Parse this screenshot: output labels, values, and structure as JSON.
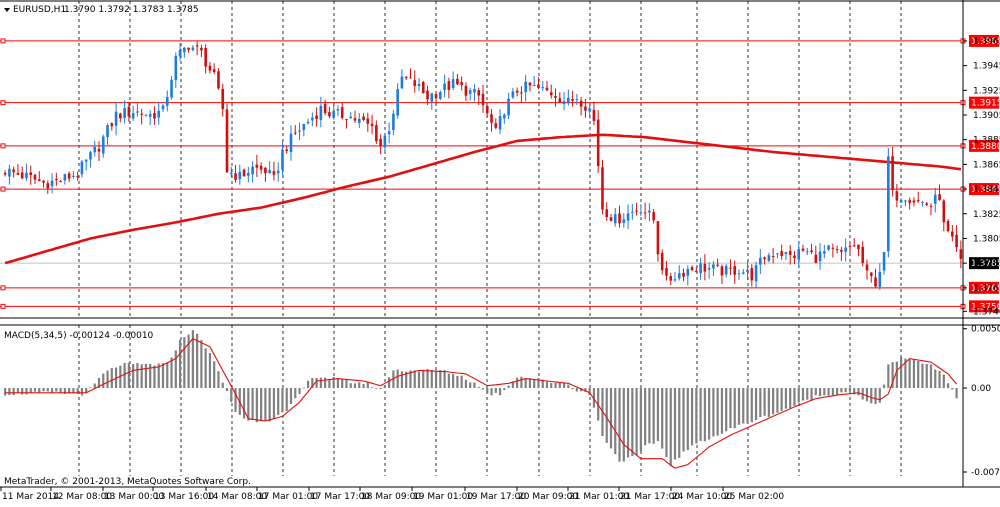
{
  "header": {
    "symbol_label": "EURUSD,H1",
    "ohlc": "1.3790 1.3792 1.3783 1.3785"
  },
  "macd": {
    "label": "MACD(5,34,5) -0.00124 -0.00010"
  },
  "footer": {
    "copyright": "MetaTrader, © 2001-2013, MetaQuotes Software Corp."
  },
  "colors": {
    "background": "#ffffff",
    "axis": "#000000",
    "grid": "#000000",
    "bull": "#1e7be0",
    "bear": "#d01010",
    "ma": "#e01010",
    "level": "#ff0000",
    "macd_hist": "#808080",
    "macd_signal": "#e01010",
    "current_price_line": "#c0c0c0"
  },
  "chart_data": [
    {
      "type": "candlestick",
      "title": "EURUSD,H1",
      "x_tick_labels": [
        "11 Mar 2014",
        "12 Mar 08:00",
        "13 Mar 00:00",
        "13 Mar 16:00",
        "14 Mar 08:00",
        "17 Mar 01:00",
        "17 Mar 17:00",
        "18 Mar 09:00",
        "19 Mar 01:00",
        "19 Mar 17:00",
        "20 Mar 09:00",
        "21 Mar 01:00",
        "21 Mar 17:00",
        "24 Mar 10:00",
        "25 Mar 02:00"
      ],
      "y_tick_labels": [
        "1.3965",
        "1.3945",
        "1.3925",
        "1.3905",
        "1.3885",
        "1.3865",
        "1.3845",
        "1.3825",
        "1.3805",
        "1.3785",
        "1.3765",
        "1.3746"
      ],
      "y_range": [
        1.3743,
        1.3986
      ],
      "grid": true,
      "current_price": 1.3785,
      "current_price_label": "1.3785",
      "horizontal_levels": [
        {
          "label": "1.3965",
          "value": 1.3965
        },
        {
          "label": "1.3915",
          "value": 1.3915
        },
        {
          "label": "1.3880",
          "value": 1.388
        },
        {
          "label": "1.3845",
          "value": 1.3845
        },
        {
          "label": "1.3765",
          "value": 1.3765
        },
        {
          "label": "1.3750",
          "value": 1.375
        }
      ],
      "close_path": [
        [
          0,
          1.386
        ],
        [
          5,
          1.3855
        ],
        [
          9,
          1.385
        ],
        [
          13,
          1.3852
        ],
        [
          17,
          1.3858
        ],
        [
          22,
          1.388
        ],
        [
          26,
          1.3905
        ],
        [
          30,
          1.3908
        ],
        [
          34,
          1.3905
        ],
        [
          37,
          1.3908
        ],
        [
          40,
          1.395
        ],
        [
          43,
          1.3962
        ],
        [
          46,
          1.3955
        ],
        [
          49,
          1.3935
        ],
        [
          51,
          1.391
        ],
        [
          52,
          1.386
        ],
        [
          55,
          1.3855
        ],
        [
          58,
          1.3862
        ],
        [
          61,
          1.386
        ],
        [
          63,
          1.3852
        ],
        [
          65,
          1.3875
        ],
        [
          68,
          1.389
        ],
        [
          71,
          1.39
        ],
        [
          74,
          1.391
        ],
        [
          77,
          1.3905
        ],
        [
          80,
          1.3905
        ],
        [
          83,
          1.39
        ],
        [
          86,
          1.3895
        ],
        [
          88,
          1.388
        ],
        [
          90,
          1.3895
        ],
        [
          93,
          1.3935
        ],
        [
          96,
          1.393
        ],
        [
          99,
          1.392
        ],
        [
          102,
          1.3925
        ],
        [
          105,
          1.393
        ],
        [
          108,
          1.3925
        ],
        [
          111,
          1.392
        ],
        [
          113,
          1.3905
        ],
        [
          115,
          1.389
        ],
        [
          117,
          1.391
        ],
        [
          120,
          1.3925
        ],
        [
          123,
          1.3928
        ],
        [
          126,
          1.3925
        ],
        [
          129,
          1.3922
        ],
        [
          132,
          1.3915
        ],
        [
          134,
          1.392
        ],
        [
          137,
          1.391
        ],
        [
          138,
          1.39
        ],
        [
          140,
          1.383
        ],
        [
          143,
          1.382
        ],
        [
          146,
          1.3825
        ],
        [
          149,
          1.383
        ],
        [
          152,
          1.382
        ],
        [
          153,
          1.3795
        ],
        [
          155,
          1.377
        ],
        [
          157,
          1.3775
        ],
        [
          160,
          1.378
        ],
        [
          163,
          1.3782
        ],
        [
          166,
          1.378
        ],
        [
          169,
          1.3778
        ],
        [
          172,
          1.378
        ],
        [
          175,
          1.3775
        ],
        [
          178,
          1.379
        ],
        [
          181,
          1.3795
        ],
        [
          184,
          1.379
        ],
        [
          187,
          1.3795
        ],
        [
          190,
          1.379
        ],
        [
          193,
          1.3795
        ],
        [
          196,
          1.3792
        ],
        [
          199,
          1.38
        ],
        [
          200,
          1.3795
        ],
        [
          202,
          1.3775
        ],
        [
          204,
          1.377
        ],
        [
          206,
          1.379
        ],
        [
          207,
          1.387
        ],
        [
          208,
          1.384
        ],
        [
          211,
          1.384
        ],
        [
          214,
          1.3835
        ],
        [
          217,
          1.3832
        ],
        [
          219,
          1.384
        ],
        [
          220,
          1.3815
        ],
        [
          223,
          1.3795
        ],
        [
          224,
          1.3785
        ]
      ],
      "moving_average": [
        [
          0,
          1.3785
        ],
        [
          10,
          1.3795
        ],
        [
          20,
          1.3805
        ],
        [
          30,
          1.3812
        ],
        [
          40,
          1.3818
        ],
        [
          50,
          1.3825
        ],
        [
          60,
          1.383
        ],
        [
          70,
          1.3838
        ],
        [
          80,
          1.3847
        ],
        [
          90,
          1.3855
        ],
        [
          100,
          1.3865
        ],
        [
          110,
          1.3875
        ],
        [
          120,
          1.3884
        ],
        [
          130,
          1.3887
        ],
        [
          140,
          1.3889
        ],
        [
          150,
          1.3887
        ],
        [
          160,
          1.3883
        ],
        [
          170,
          1.3879
        ],
        [
          180,
          1.3875
        ],
        [
          190,
          1.3872
        ],
        [
          200,
          1.3869
        ],
        [
          210,
          1.3866
        ],
        [
          220,
          1.3863
        ],
        [
          224,
          1.3861
        ]
      ]
    },
    {
      "type": "bar",
      "title": "MACD(5,34,5) -0.00124 -0.00010",
      "y_tick_labels": [
        "0.00504",
        "0.00",
        "-0.00713"
      ],
      "y_range": [
        -0.0073,
        0.0051
      ],
      "histogram_path": [
        [
          0,
          -0.0005
        ],
        [
          10,
          -0.0004
        ],
        [
          19,
          -0.0005
        ],
        [
          23,
          0.0012
        ],
        [
          27,
          0.002
        ],
        [
          33,
          0.002
        ],
        [
          38,
          0.002
        ],
        [
          41,
          0.004
        ],
        [
          44,
          0.005
        ],
        [
          48,
          0.003
        ],
        [
          51,
          0.0005
        ],
        [
          54,
          -0.002
        ],
        [
          57,
          -0.0028
        ],
        [
          62,
          -0.0027
        ],
        [
          66,
          -0.002
        ],
        [
          69,
          -0.0005
        ],
        [
          72,
          0.001
        ],
        [
          77,
          0.0008
        ],
        [
          81,
          0.0005
        ],
        [
          85,
          0.0004
        ],
        [
          88,
          -0.0002
        ],
        [
          91,
          0.0015
        ],
        [
          96,
          0.0015
        ],
        [
          102,
          0.0015
        ],
        [
          107,
          0.001
        ],
        [
          111,
          0.0002
        ],
        [
          113,
          -0.0005
        ],
        [
          116,
          -0.0005
        ],
        [
          120,
          0.001
        ],
        [
          124,
          0.0008
        ],
        [
          128,
          0.0005
        ],
        [
          131,
          0.0005
        ],
        [
          134,
          -0.0002
        ],
        [
          137,
          -0.0005
        ],
        [
          140,
          -0.004
        ],
        [
          144,
          -0.0062
        ],
        [
          148,
          -0.0058
        ],
        [
          150,
          -0.005
        ],
        [
          153,
          -0.0045
        ],
        [
          156,
          -0.0065
        ],
        [
          159,
          -0.0055
        ],
        [
          163,
          -0.0045
        ],
        [
          167,
          -0.004
        ],
        [
          170,
          -0.0035
        ],
        [
          175,
          -0.0028
        ],
        [
          180,
          -0.0022
        ],
        [
          185,
          -0.0015
        ],
        [
          190,
          -0.0007
        ],
        [
          195,
          -0.0005
        ],
        [
          198,
          -0.0002
        ],
        [
          201,
          -0.001
        ],
        [
          204,
          -0.0015
        ],
        [
          205,
          -0.0012
        ],
        [
          207,
          0.002
        ],
        [
          210,
          0.0025
        ],
        [
          215,
          0.0022
        ],
        [
          219,
          0.0015
        ],
        [
          221,
          0.0005
        ],
        [
          223,
          -0.0008
        ],
        [
          224,
          -0.0012
        ]
      ],
      "signal_path": [
        [
          0,
          -0.0004
        ],
        [
          10,
          -0.0004
        ],
        [
          19,
          -0.0004
        ],
        [
          24,
          0.0005
        ],
        [
          30,
          0.0015
        ],
        [
          36,
          0.0018
        ],
        [
          40,
          0.0025
        ],
        [
          44,
          0.0042
        ],
        [
          48,
          0.0035
        ],
        [
          51,
          0.0015
        ],
        [
          54,
          -0.0005
        ],
        [
          57,
          -0.0026
        ],
        [
          61,
          -0.0028
        ],
        [
          65,
          -0.0024
        ],
        [
          69,
          -0.0012
        ],
        [
          73,
          0.0006
        ],
        [
          78,
          0.0008
        ],
        [
          84,
          0.0006
        ],
        [
          88,
          0.0002
        ],
        [
          92,
          0.001
        ],
        [
          97,
          0.0015
        ],
        [
          103,
          0.0014
        ],
        [
          108,
          0.0012
        ],
        [
          113,
          0.0002
        ],
        [
          118,
          0.0004
        ],
        [
          122,
          0.0008
        ],
        [
          127,
          0.0006
        ],
        [
          132,
          0.0004
        ],
        [
          137,
          -0.0004
        ],
        [
          141,
          -0.0025
        ],
        [
          145,
          -0.0048
        ],
        [
          149,
          -0.006
        ],
        [
          154,
          -0.006
        ],
        [
          157,
          -0.0068
        ],
        [
          160,
          -0.0065
        ],
        [
          165,
          -0.005
        ],
        [
          170,
          -0.004
        ],
        [
          175,
          -0.0032
        ],
        [
          180,
          -0.0024
        ],
        [
          185,
          -0.0016
        ],
        [
          190,
          -0.0009
        ],
        [
          195,
          -0.0006
        ],
        [
          200,
          -0.0004
        ],
        [
          203,
          -0.0008
        ],
        [
          205,
          -0.001
        ],
        [
          207,
          -0.0005
        ],
        [
          209,
          0.0015
        ],
        [
          212,
          0.0025
        ],
        [
          217,
          0.0022
        ],
        [
          221,
          0.0012
        ],
        [
          224,
          -0.0001
        ]
      ]
    }
  ]
}
